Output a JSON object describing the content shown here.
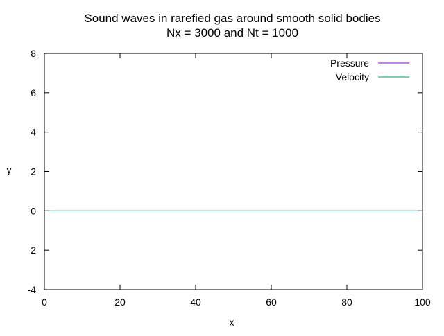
{
  "chart_data": {
    "type": "line",
    "title": "Sound waves in rarefied gas around smooth solid bodies",
    "subtitle": "Nx = 3000 and Nt = 1000",
    "xlabel": "x",
    "ylabel": "y",
    "xlim": [
      0,
      100
    ],
    "ylim": [
      -4,
      8
    ],
    "xticks": [
      0,
      20,
      40,
      60,
      80,
      100
    ],
    "yticks": [
      -4,
      -2,
      0,
      2,
      4,
      6,
      8
    ],
    "grid": false,
    "legend_position": "top-right",
    "series": [
      {
        "name": "Pressure",
        "color": "#9400d3",
        "x": [
          0,
          100
        ],
        "y": [
          0,
          0
        ]
      },
      {
        "name": "Velocity",
        "color": "#009e73",
        "x": [
          0,
          100
        ],
        "y": [
          0,
          0
        ]
      }
    ]
  }
}
